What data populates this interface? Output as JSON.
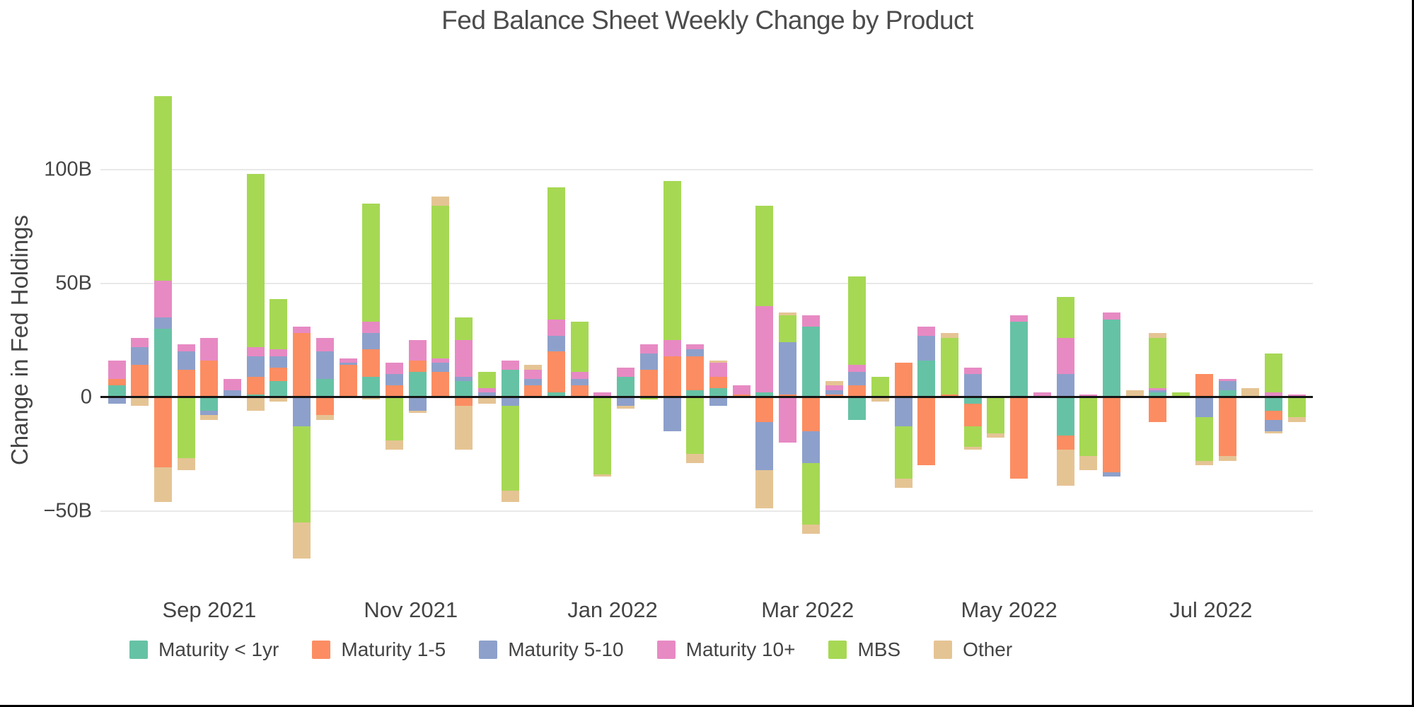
{
  "title": "Fed Balance Sheet Weekly Change by Product",
  "y_axis": {
    "title": "Change in Fed Holdings",
    "ticks": [
      {
        "label": "100B",
        "value": 100
      },
      {
        "label": "50B",
        "value": 50
      },
      {
        "label": "0",
        "value": 0
      },
      {
        "label": "−50B",
        "value": -50
      }
    ]
  },
  "x_axis": {
    "ticks": [
      {
        "label": "Sep 2021",
        "week_index": 4
      },
      {
        "label": "Nov 2021",
        "week_index": 12.71
      },
      {
        "label": "Jan 2022",
        "week_index": 21.43
      },
      {
        "label": "Mar 2022",
        "week_index": 29.86
      },
      {
        "label": "May 2022",
        "week_index": 38.57
      },
      {
        "label": "Jul 2022",
        "week_index": 47.29
      }
    ]
  },
  "legend": [
    {
      "label": "Maturity < 1yr",
      "color": "#66c2a5"
    },
    {
      "label": "Maturity 1-5",
      "color": "#fc8d62"
    },
    {
      "label": "Maturity 5-10",
      "color": "#8da0cb"
    },
    {
      "label": "Maturity 10+",
      "color": "#e78ac3"
    },
    {
      "label": "MBS",
      "color": "#a6d854"
    },
    {
      "label": "Other",
      "color": "#e5c494"
    }
  ],
  "chart_data": {
    "type": "bar",
    "stacked": true,
    "title": "Fed Balance Sheet Weekly Change by Product",
    "xlabel": "",
    "ylabel": "Change in Fed Holdings",
    "units": "billions USD",
    "ylim": [
      -75,
      148
    ],
    "grid": true,
    "legend_position": "bottom",
    "x": [
      "2021-08-04",
      "2021-08-11",
      "2021-08-18",
      "2021-08-25",
      "2021-09-01",
      "2021-09-08",
      "2021-09-15",
      "2021-09-22",
      "2021-09-29",
      "2021-10-06",
      "2021-10-13",
      "2021-10-20",
      "2021-10-27",
      "2021-11-03",
      "2021-11-10",
      "2021-11-17",
      "2021-11-24",
      "2021-12-01",
      "2021-12-08",
      "2021-12-15",
      "2021-12-22",
      "2021-12-29",
      "2022-01-05",
      "2022-01-12",
      "2022-01-19",
      "2022-01-26",
      "2022-02-02",
      "2022-02-09",
      "2022-02-16",
      "2022-02-23",
      "2022-03-02",
      "2022-03-09",
      "2022-03-16",
      "2022-03-23",
      "2022-03-30",
      "2022-04-06",
      "2022-04-13",
      "2022-04-20",
      "2022-04-27",
      "2022-05-04",
      "2022-05-11",
      "2022-05-18",
      "2022-05-25",
      "2022-06-01",
      "2022-06-08",
      "2022-06-15",
      "2022-06-22",
      "2022-06-29",
      "2022-07-06",
      "2022-07-13",
      "2022-07-20",
      "2022-07-27"
    ],
    "series": [
      {
        "name": "Maturity < 1yr",
        "color": "#66c2a5",
        "values": [
          5,
          0,
          30,
          0,
          -6,
          0,
          1,
          7,
          0,
          8,
          0,
          9,
          0,
          11,
          0,
          7,
          0,
          12,
          0,
          2,
          0,
          0,
          9,
          0,
          0,
          3,
          4,
          0,
          2,
          0,
          31,
          0,
          -10,
          0,
          0,
          16,
          0,
          -3,
          0,
          33,
          0,
          -17,
          0,
          34,
          0,
          2,
          0,
          0,
          3,
          0,
          -6,
          0
        ]
      },
      {
        "name": "Maturity 1-5",
        "color": "#fc8d62",
        "values": [
          3,
          14,
          -31,
          12,
          16,
          0,
          8,
          6,
          28,
          -8,
          14,
          12,
          5,
          5,
          11,
          -4,
          0,
          0,
          5,
          18,
          5,
          0,
          0,
          12,
          18,
          15,
          5,
          1,
          -11,
          1,
          -15,
          1,
          5,
          0,
          15,
          -30,
          1,
          -10,
          0,
          -36,
          0,
          -6,
          0,
          -33,
          0,
          -11,
          0,
          10,
          -26,
          0,
          -4,
          0
        ]
      },
      {
        "name": "Maturity 5-10",
        "color": "#8da0cb",
        "values": [
          -3,
          8,
          5,
          8,
          -2,
          3,
          9,
          5,
          -13,
          12,
          1,
          7,
          5,
          -6,
          4,
          2,
          2,
          -4,
          3,
          7,
          3,
          0,
          -4,
          7,
          -15,
          3,
          -4,
          0,
          -21,
          23,
          -14,
          2,
          6,
          0,
          -13,
          11,
          0,
          10,
          0,
          0,
          0,
          10,
          0,
          -2,
          0,
          1,
          0,
          -9,
          4,
          0,
          -5,
          0
        ]
      },
      {
        "name": "Maturity 10+",
        "color": "#e78ac3",
        "values": [
          8,
          4,
          16,
          3,
          10,
          5,
          4,
          3,
          3,
          6,
          2,
          5,
          5,
          9,
          2,
          16,
          2,
          4,
          4,
          7,
          3,
          2,
          4,
          4,
          7,
          2,
          6,
          4,
          38,
          -20,
          5,
          2,
          3,
          0,
          0,
          4,
          0,
          3,
          0,
          3,
          2,
          16,
          1,
          3,
          0,
          1,
          0,
          0,
          1,
          0,
          2,
          1
        ]
      },
      {
        "name": "MBS",
        "color": "#a6d854",
        "values": [
          0,
          0,
          81,
          -27,
          0,
          0,
          76,
          22,
          -42,
          0,
          0,
          52,
          -19,
          0,
          67,
          10,
          7,
          -37,
          0,
          58,
          22,
          -34,
          0,
          -1,
          70,
          -25,
          0,
          0,
          44,
          12,
          -27,
          0,
          39,
          9,
          -23,
          0,
          25,
          -9,
          -16,
          0,
          0,
          18,
          -26,
          0,
          0,
          22,
          2,
          -19,
          0,
          0,
          17,
          -9
        ]
      },
      {
        "name": "Other",
        "color": "#e5c494",
        "values": [
          0,
          -4,
          -15,
          -5,
          -2,
          0,
          -6,
          -2,
          -16,
          -2,
          0,
          -1,
          -4,
          -1,
          4,
          -19,
          -3,
          -5,
          2,
          0,
          0,
          -1,
          -1,
          0,
          0,
          -4,
          1,
          0,
          -17,
          1,
          -4,
          2,
          0,
          -2,
          -4,
          0,
          2,
          -1,
          -2,
          0,
          0,
          -16,
          -6,
          0,
          3,
          2,
          0,
          -2,
          -2,
          4,
          -1,
          -2
        ]
      }
    ]
  }
}
